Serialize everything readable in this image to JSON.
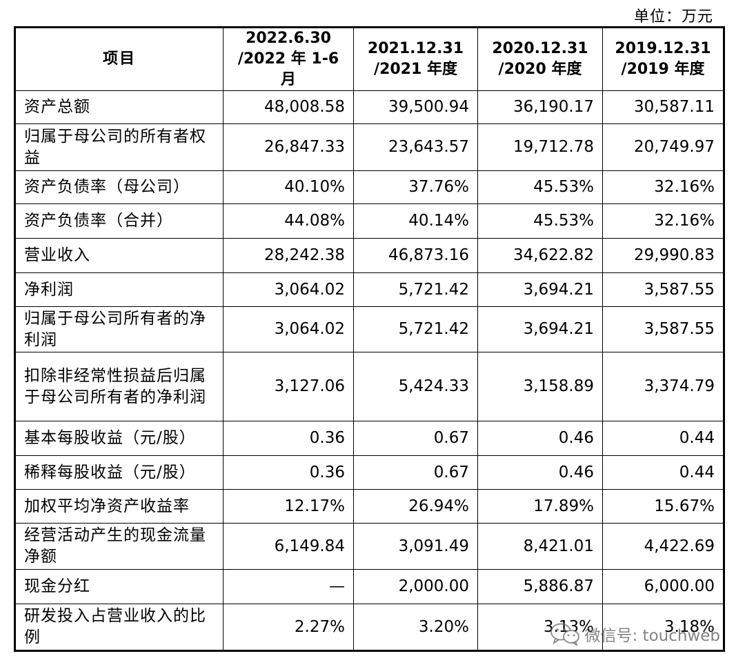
{
  "unit": "单位：万元",
  "columns": [
    {
      "line1": "项目",
      "line2": ""
    },
    {
      "line1": "2022.6.30",
      "line2": "/2022 年 1-6 月"
    },
    {
      "line1": "2021.12.31",
      "line2": "/2021 年度"
    },
    {
      "line1": "2020.12.31",
      "line2": "/2020 年度"
    },
    {
      "line1": "2019.12.31",
      "line2": "/2019 年度"
    }
  ],
  "rows": [
    {
      "label": "资产总额",
      "values": [
        "48,008.58",
        "39,500.94",
        "36,190.17",
        "30,587.11"
      ]
    },
    {
      "label": "归属于母公司的所有者权益",
      "values": [
        "26,847.33",
        "23,643.57",
        "19,712.78",
        "20,749.97"
      ]
    },
    {
      "label": "资产负债率（母公司）",
      "values": [
        "40.10%",
        "37.76%",
        "45.53%",
        "32.16%"
      ]
    },
    {
      "label": "资产负债率（合并）",
      "values": [
        "44.08%",
        "40.14%",
        "45.53%",
        "32.16%"
      ]
    },
    {
      "label": "营业收入",
      "values": [
        "28,242.38",
        "46,873.16",
        "34,622.82",
        "29,990.83"
      ]
    },
    {
      "label": "净利润",
      "values": [
        "3,064.02",
        "5,721.42",
        "3,694.21",
        "3,587.55"
      ]
    },
    {
      "label": "归属于母公司所有者的净利润",
      "values": [
        "3,064.02",
        "5,721.42",
        "3,694.21",
        "3,587.55"
      ]
    },
    {
      "label": "扣除非经常性损益后归属于母公司所有者的净利润",
      "values": [
        "3,127.06",
        "5,424.33",
        "3,158.89",
        "3,374.79"
      ]
    },
    {
      "label": "基本每股收益（元/股）",
      "values": [
        "0.36",
        "0.67",
        "0.46",
        "0.44"
      ]
    },
    {
      "label": "稀释每股收益（元/股）",
      "values": [
        "0.36",
        "0.67",
        "0.46",
        "0.44"
      ]
    },
    {
      "label": "加权平均净资产收益率",
      "values": [
        "12.17%",
        "26.94%",
        "17.89%",
        "15.67%"
      ]
    },
    {
      "label": "经营活动产生的现金流量净额",
      "values": [
        "6,149.84",
        "3,091.49",
        "8,421.01",
        "4,422.69"
      ]
    },
    {
      "label": "现金分红",
      "values": [
        "—",
        "2,000.00",
        "5,886.87",
        "6,000.00"
      ]
    },
    {
      "label": "研发投入占营业收入的比例",
      "values": [
        "2.27%",
        "3.20%",
        "3.13%",
        "3.18%"
      ]
    }
  ],
  "watermark": {
    "text": "微信号: touchweb",
    "icon": "wechat-icon"
  }
}
